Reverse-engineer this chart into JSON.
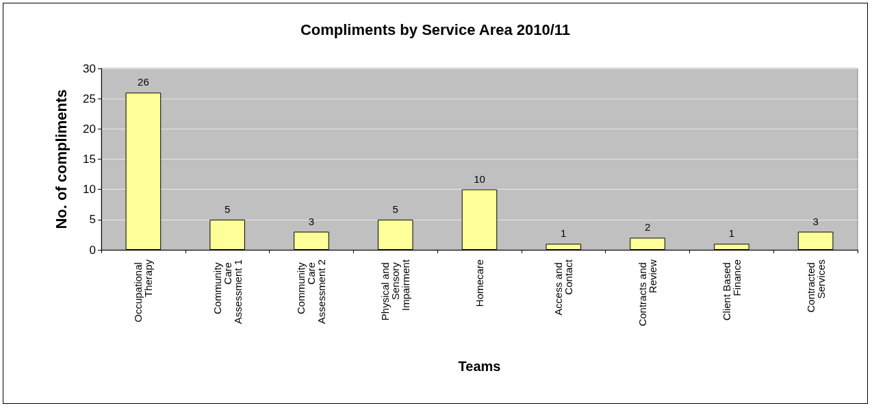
{
  "chart_data": {
    "type": "bar",
    "title": "Compliments by Service Area 2010/11",
    "xlabel": "Teams",
    "ylabel": "No. of compliments",
    "categories": [
      "Occupational Therapy",
      "Community Care Assessment 1",
      "Community Care Assessment 2",
      "Physical and Sensory Impairment",
      "Homecare",
      "Access and Contact",
      "Contracts and Review",
      "Client Based Finance",
      "Contracted Services"
    ],
    "values": [
      26,
      5,
      3,
      5,
      10,
      1,
      2,
      1,
      3
    ],
    "color": "#ffff99",
    "ylim": [
      0,
      30
    ],
    "yticks": [
      0,
      5,
      10,
      15,
      20,
      25,
      30
    ],
    "grid": "y",
    "data_labels": true
  }
}
